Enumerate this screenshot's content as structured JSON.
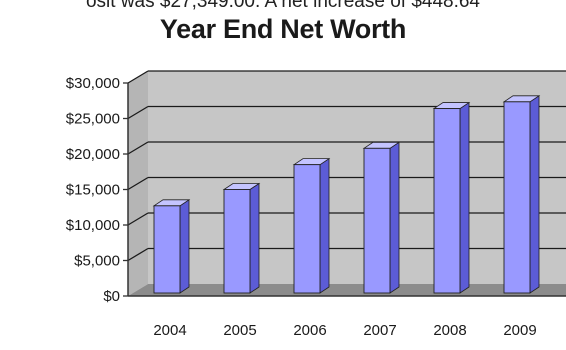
{
  "page": {
    "cropped_text": "osit was $27,349.00. A net increase of $448.64"
  },
  "chart_data": {
    "type": "bar",
    "title": "Year End Net Worth",
    "xlabel": "",
    "ylabel": "",
    "categories": [
      "2004",
      "2005",
      "2006",
      "2007",
      "2008",
      "2009"
    ],
    "values": [
      12700,
      15000,
      18500,
      20800,
      26400,
      27349
    ],
    "ylim": [
      0,
      30000
    ],
    "yticks": [
      0,
      5000,
      10000,
      15000,
      20000,
      25000,
      30000
    ],
    "ytick_labels": [
      "$0",
      "$5,000",
      "$10,000",
      "$15,000",
      "$20,000",
      "$25,000",
      "$30,000"
    ],
    "grid": true,
    "legend": "none",
    "style": "3d",
    "colors": {
      "bar_front": "#9999ff",
      "bar_side": "#5c5cd6",
      "bar_top": "#c4c4ff",
      "wall": "#c6c6c6",
      "floor": "#8c8c8c"
    }
  }
}
